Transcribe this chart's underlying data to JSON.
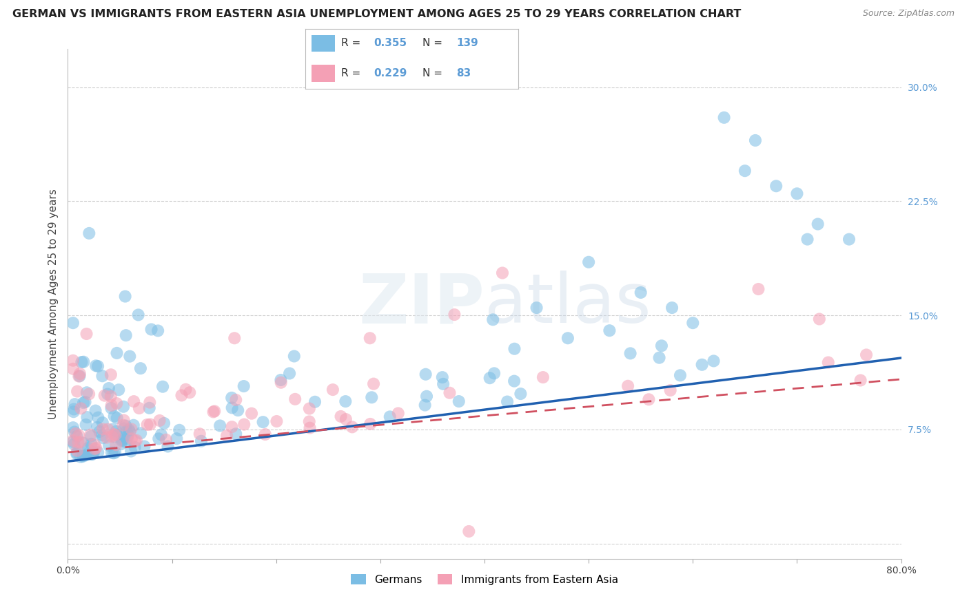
{
  "title": "GERMAN VS IMMIGRANTS FROM EASTERN ASIA UNEMPLOYMENT AMONG AGES 25 TO 29 YEARS CORRELATION CHART",
  "source": "Source: ZipAtlas.com",
  "ylabel": "Unemployment Among Ages 25 to 29 years",
  "legend1_label": "Germans",
  "legend2_label": "Immigrants from Eastern Asia",
  "r1": 0.355,
  "n1": 139,
  "r2": 0.229,
  "n2": 83,
  "xlim": [
    0,
    0.8
  ],
  "ylim": [
    -0.01,
    0.325
  ],
  "color_blue": "#7bbde4",
  "color_pink": "#f4a0b5",
  "line_color_blue": "#2060b0",
  "line_color_pink": "#d05060",
  "background_color": "#ffffff",
  "watermark_zip": "ZIP",
  "watermark_atlas": "atlas",
  "title_fontsize": 11.5,
  "axis_label_fontsize": 11,
  "tick_fontsize": 10,
  "tick_color": "#5b9bd5",
  "legend_r1": "0.355",
  "legend_r2": "0.229",
  "legend_n1": "139",
  "legend_n2": "83"
}
